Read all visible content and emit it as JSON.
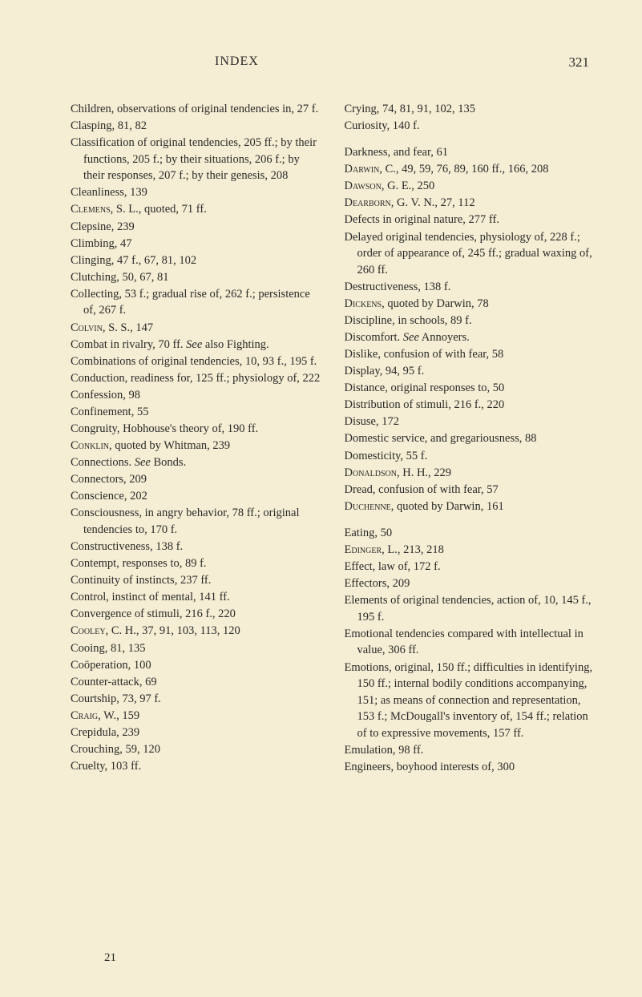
{
  "header": {
    "title": "INDEX",
    "pageNumber": "321"
  },
  "bottomNumber": "21",
  "leftColumn": [
    {
      "t": "entry",
      "text": "Children, observations of original tendencies in, 27 f."
    },
    {
      "t": "entry",
      "text": "Clasping, 81, 82"
    },
    {
      "t": "entry",
      "text": "Classification of original tendencies, 205 ff.; by their functions, 205 f.; by their situations, 206 f.; by their responses, 207 f.; by their genesis, 208"
    },
    {
      "t": "entry",
      "text": "Cleanliness, 139"
    },
    {
      "t": "entry",
      "html": "<span class='sc'>Clemens</span>, S. L., quoted, 71 ff."
    },
    {
      "t": "entry",
      "text": "Clepsine, 239"
    },
    {
      "t": "entry",
      "text": "Climbing, 47"
    },
    {
      "t": "entry",
      "text": "Clinging, 47 f., 67, 81, 102"
    },
    {
      "t": "entry",
      "text": "Clutching, 50, 67, 81"
    },
    {
      "t": "entry",
      "text": "Collecting, 53 f.; gradual rise of, 262 f.; persistence of, 267 f."
    },
    {
      "t": "entry",
      "html": "<span class='sc'>Colvin</span>, S. S., 147"
    },
    {
      "t": "entry",
      "html": "Combat in rivalry, 70 ff. <i>See</i> also Fighting."
    },
    {
      "t": "entry",
      "text": "Combinations of original tendencies, 10, 93 f., 195 f."
    },
    {
      "t": "entry",
      "text": "Conduction, readiness for, 125 ff.; physiology of, 222"
    },
    {
      "t": "entry",
      "text": "Confession, 98"
    },
    {
      "t": "entry",
      "text": "Confinement, 55"
    },
    {
      "t": "entry",
      "text": "Congruity, Hobhouse's theory of, 190 ff."
    },
    {
      "t": "entry",
      "html": "<span class='sc'>Conklin</span>, quoted by Whitman, 239"
    },
    {
      "t": "entry",
      "html": "Connections. <i>See</i> Bonds."
    },
    {
      "t": "entry",
      "text": "Connectors, 209"
    },
    {
      "t": "entry",
      "text": "Conscience, 202"
    },
    {
      "t": "entry",
      "text": "Consciousness, in angry behavior, 78 ff.; original tendencies to, 170 f."
    },
    {
      "t": "entry",
      "text": "Constructiveness, 138 f."
    },
    {
      "t": "entry",
      "text": "Contempt, responses to, 89 f."
    },
    {
      "t": "entry",
      "text": "Continuity of instincts, 237 ff."
    },
    {
      "t": "entry",
      "text": "Control, instinct of mental, 141 ff."
    },
    {
      "t": "entry",
      "text": "Convergence of stimuli, 216 f., 220"
    },
    {
      "t": "entry",
      "html": "<span class='sc'>Cooley</span>, C. H., 37, 91, 103, 113, 120"
    },
    {
      "t": "entry",
      "text": "Cooing, 81, 135"
    },
    {
      "t": "entry",
      "text": "Coöperation, 100"
    },
    {
      "t": "entry",
      "text": "Counter-attack, 69"
    },
    {
      "t": "entry",
      "text": "Courtship, 73, 97 f."
    },
    {
      "t": "entry",
      "html": "<span class='sc'>Craig</span>, W., 159"
    },
    {
      "t": "entry",
      "text": "Crepidula, 239"
    },
    {
      "t": "entry",
      "text": "Crouching, 59, 120"
    },
    {
      "t": "entry",
      "text": "Cruelty, 103 ff."
    }
  ],
  "rightColumn": [
    {
      "t": "entry",
      "text": "Crying, 74, 81, 91, 102, 135"
    },
    {
      "t": "entry",
      "text": "Curiosity, 140 f."
    },
    {
      "t": "break"
    },
    {
      "t": "entry",
      "text": "Darkness, and fear, 61"
    },
    {
      "t": "entry",
      "html": "<span class='sc'>Darwin</span>, C., 49, 59, 76, 89, 160 ff., 166, 208"
    },
    {
      "t": "entry",
      "html": "<span class='sc'>Dawson</span>, G. E., 250"
    },
    {
      "t": "entry",
      "html": "<span class='sc'>Dearborn</span>, G. V. N., 27, 112"
    },
    {
      "t": "entry",
      "text": "Defects in original nature, 277 ff."
    },
    {
      "t": "entry",
      "text": "Delayed original tendencies, physiology of, 228 f.; order of appearance of, 245 ff.; gradual waxing of, 260 ff."
    },
    {
      "t": "entry",
      "text": "Destructiveness, 138 f."
    },
    {
      "t": "entry",
      "html": "<span class='sc'>Dickens</span>, quoted by Darwin, 78"
    },
    {
      "t": "entry",
      "text": "Discipline, in schools, 89 f."
    },
    {
      "t": "entry",
      "html": "Discomfort. <i>See</i> Annoyers."
    },
    {
      "t": "entry",
      "text": "Dislike, confusion of with fear, 58"
    },
    {
      "t": "entry",
      "text": "Display, 94, 95 f."
    },
    {
      "t": "entry",
      "text": "Distance, original responses to, 50"
    },
    {
      "t": "entry",
      "text": "Distribution of stimuli, 216 f., 220"
    },
    {
      "t": "entry",
      "text": "Disuse, 172"
    },
    {
      "t": "entry",
      "text": "Domestic service, and gregariousness, 88"
    },
    {
      "t": "entry",
      "text": "Domesticity, 55 f."
    },
    {
      "t": "entry",
      "html": "<span class='sc'>Donaldson</span>, H. H., 229"
    },
    {
      "t": "entry",
      "text": "Dread, confusion of with fear, 57"
    },
    {
      "t": "entry",
      "html": "<span class='sc'>Duchenne</span>, quoted by Darwin, 161"
    },
    {
      "t": "break"
    },
    {
      "t": "entry",
      "text": "Eating, 50"
    },
    {
      "t": "entry",
      "html": "<span class='sc'>Edinger</span>, L., 213, 218"
    },
    {
      "t": "entry",
      "text": "Effect, law of, 172 f."
    },
    {
      "t": "entry",
      "text": "Effectors, 209"
    },
    {
      "t": "entry",
      "text": "Elements of original tendencies, action of, 10, 145 f., 195 f."
    },
    {
      "t": "entry",
      "text": "Emotional tendencies compared with intellectual in value, 306 ff."
    },
    {
      "t": "entry",
      "text": "Emotions, original, 150 ff.; difficulties in identifying, 150 ff.; internal bodily conditions accompanying, 151; as means of connection and representation, 153 f.; McDougall's inventory of, 154 ff.; relation of to expressive movements, 157 ff."
    },
    {
      "t": "entry",
      "text": "Emulation, 98 ff."
    },
    {
      "t": "entry",
      "text": "Engineers, boyhood interests of, 300"
    }
  ]
}
